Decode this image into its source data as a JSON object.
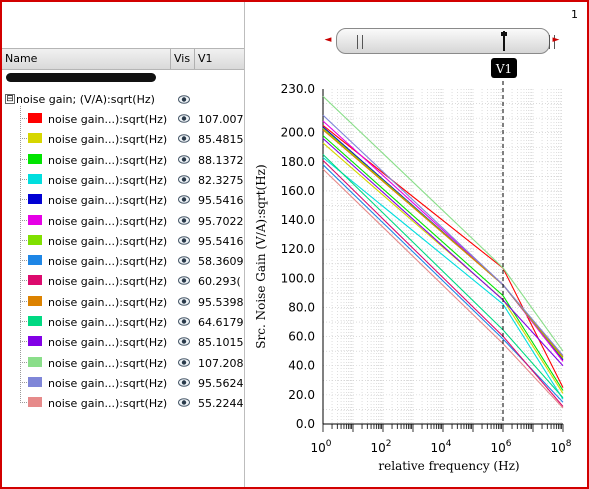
{
  "tree": {
    "header": {
      "name": "Name",
      "vis": "Vis",
      "v1": "V1"
    },
    "root_label": "noise gain; (V/A):sqrt(Hz)",
    "root_toggle": "⊟",
    "items": [
      {
        "label": "noise gain...):sqrt(Hz)",
        "value": "107.007",
        "color": "#ff0000"
      },
      {
        "label": "noise gain...):sqrt(Hz)",
        "value": "85.4815",
        "color": "#d6d600"
      },
      {
        "label": "noise gain...):sqrt(Hz)",
        "value": "88.1372",
        "color": "#00e400"
      },
      {
        "label": "noise gain...):sqrt(Hz)",
        "value": "82.3275",
        "color": "#00dede"
      },
      {
        "label": "noise gain...):sqrt(Hz)",
        "value": "95.5416",
        "color": "#0000d4"
      },
      {
        "label": "noise gain...):sqrt(Hz)",
        "value": "95.7022",
        "color": "#e600e6"
      },
      {
        "label": "noise gain...):sqrt(Hz)",
        "value": "95.5416",
        "color": "#80e000"
      },
      {
        "label": "noise gain...):sqrt(Hz)",
        "value": "58.3609",
        "color": "#1e86e6"
      },
      {
        "label": "noise gain...):sqrt(Hz)",
        "value": "60.293(",
        "color": "#dc0a6e"
      },
      {
        "label": "noise gain...):sqrt(Hz)",
        "value": "95.5398",
        "color": "#dc8200"
      },
      {
        "label": "noise gain...):sqrt(Hz)",
        "value": "64.6179",
        "color": "#00d982"
      },
      {
        "label": "noise gain...):sqrt(Hz)",
        "value": "85.1015",
        "color": "#8200e6"
      },
      {
        "label": "noise gain...):sqrt(Hz)",
        "value": "107.208",
        "color": "#8ade8a"
      },
      {
        "label": "noise gain...):sqrt(Hz)",
        "value": "95.5624",
        "color": "#7f86d8"
      },
      {
        "label": "noise gain...):sqrt(Hz)",
        "value": "55.2244",
        "color": "#e68a8a"
      }
    ]
  },
  "page_number": "1",
  "slider": {
    "left_arrow": "◄",
    "right_arrow": "►"
  },
  "icons": {
    "visibility": "eye-icon"
  },
  "chart_data": {
    "type": "line",
    "ylabel": "Src. Noise Gain (V/A):sqrt(Hz)",
    "xlabel": "relative frequency (Hz)",
    "x_scale": "log",
    "xlim": [
      1,
      100000000
    ],
    "ylim": [
      0,
      230
    ],
    "y_ticks": [
      "0.0",
      "20.0",
      "40.0",
      "60.0",
      "80.0",
      "100.0",
      "120.0",
      "140.0",
      "160.0",
      "180.0",
      "200.0",
      "230.0"
    ],
    "x_ticks": [
      {
        "base": "10",
        "exp": "0"
      },
      {
        "base": "10",
        "exp": "2"
      },
      {
        "base": "10",
        "exp": "4"
      },
      {
        "base": "10",
        "exp": "6"
      },
      {
        "base": "10",
        "exp": "8"
      }
    ],
    "grid": true,
    "marker": {
      "label": "V1",
      "x": 1000000
    },
    "series": [
      {
        "color": "#ff0000",
        "values": [
          [
            1,
            205
          ],
          [
            1000000,
            107.007
          ],
          [
            100000000,
            25
          ]
        ]
      },
      {
        "color": "#d6d600",
        "values": [
          [
            1,
            193
          ],
          [
            1000000,
            85.4815
          ],
          [
            100000000,
            21
          ]
        ]
      },
      {
        "color": "#00e400",
        "values": [
          [
            1,
            198
          ],
          [
            1000000,
            88.1372
          ],
          [
            100000000,
            23
          ]
        ]
      },
      {
        "color": "#00dede",
        "values": [
          [
            1,
            183
          ],
          [
            1000000,
            82.3275
          ],
          [
            100000000,
            17
          ]
        ]
      },
      {
        "color": "#0000d4",
        "values": [
          [
            1,
            204
          ],
          [
            1000000,
            95.5416
          ],
          [
            100000000,
            44
          ]
        ]
      },
      {
        "color": "#e600e6",
        "values": [
          [
            1,
            208
          ],
          [
            1000000,
            95.7022
          ],
          [
            100000000,
            43
          ]
        ]
      },
      {
        "color": "#80e000",
        "values": [
          [
            1,
            203
          ],
          [
            1000000,
            95.5416
          ],
          [
            100000000,
            45
          ]
        ]
      },
      {
        "color": "#1e86e6",
        "values": [
          [
            1,
            178
          ],
          [
            1000000,
            58.3609
          ],
          [
            100000000,
            15
          ]
        ]
      },
      {
        "color": "#dc0a6e",
        "values": [
          [
            1,
            181
          ],
          [
            1000000,
            60.293
          ],
          [
            100000000,
            12
          ]
        ]
      },
      {
        "color": "#dc8200",
        "values": [
          [
            1,
            202
          ],
          [
            1000000,
            95.5398
          ],
          [
            100000000,
            46
          ]
        ]
      },
      {
        "color": "#00d982",
        "values": [
          [
            1,
            185
          ],
          [
            1000000,
            64.6179
          ],
          [
            100000000,
            18
          ]
        ]
      },
      {
        "color": "#8200e6",
        "values": [
          [
            1,
            196
          ],
          [
            1000000,
            85.1015
          ],
          [
            100000000,
            40
          ]
        ]
      },
      {
        "color": "#8ade8a",
        "values": [
          [
            1,
            225
          ],
          [
            1000000,
            107.208
          ],
          [
            100000000,
            50
          ]
        ]
      },
      {
        "color": "#7f86d8",
        "values": [
          [
            1,
            212
          ],
          [
            1000000,
            95.5624
          ],
          [
            100000000,
            47
          ]
        ]
      },
      {
        "color": "#e68a8a",
        "values": [
          [
            1,
            175
          ],
          [
            1000000,
            55.2244
          ],
          [
            100000000,
            11
          ]
        ]
      }
    ]
  }
}
